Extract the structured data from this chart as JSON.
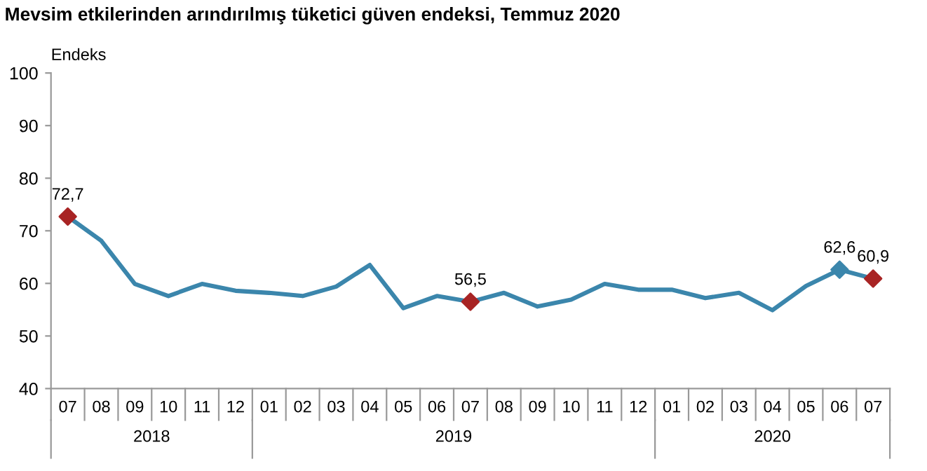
{
  "chart_data": {
    "type": "line",
    "title": "Mevsim etkilerinden arındırılmış tüketici güven endeksi, Temmuz 2020",
    "ylabel": "Endeks",
    "categories": [
      "07",
      "08",
      "09",
      "10",
      "11",
      "12",
      "01",
      "02",
      "03",
      "04",
      "05",
      "06",
      "07",
      "08",
      "09",
      "10",
      "11",
      "12",
      "01",
      "02",
      "03",
      "04",
      "05",
      "06",
      "07"
    ],
    "series": [
      {
        "color": "#3b86ac",
        "values": [
          72.7,
          68.1,
          59.9,
          57.6,
          59.9,
          58.6,
          58.2,
          57.6,
          59.4,
          63.5,
          55.3,
          57.6,
          56.5,
          58.2,
          55.6,
          56.9,
          59.9,
          58.8,
          58.8,
          57.2,
          58.2,
          54.9,
          59.5,
          62.6,
          60.9
        ],
        "colors": [
          "#a82424",
          null,
          null,
          null,
          null,
          null,
          null,
          null,
          null,
          null,
          null,
          null,
          "#a82424",
          null,
          null,
          null,
          null,
          null,
          null,
          null,
          null,
          null,
          null,
          "#3b86ac",
          "#a82424"
        ],
        "value_labels": [
          "72,7",
          null,
          null,
          null,
          null,
          null,
          null,
          null,
          null,
          null,
          null,
          null,
          "56,5",
          null,
          null,
          null,
          null,
          null,
          null,
          null,
          null,
          null,
          null,
          "62,6",
          "60,9"
        ]
      }
    ],
    "annotations": [
      "2018",
      "2019",
      "2020"
    ],
    "ylim": [
      40,
      100
    ],
    "yticks": [
      40,
      50,
      60,
      70,
      80,
      90,
      100
    ],
    "grid": false,
    "legend": false,
    "line_style": "solid"
  }
}
